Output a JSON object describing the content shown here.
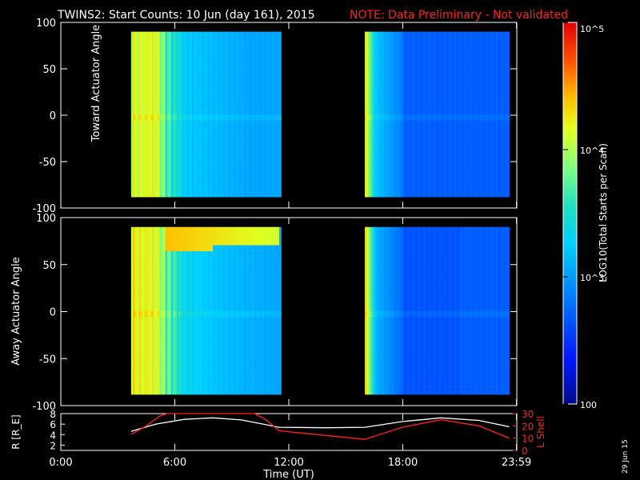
{
  "title": {
    "main": "TWINS2: Start Counts: 10 Jun (day 161), 2015",
    "note": "NOTE: Data Preliminary - Not validated"
  },
  "panels": {
    "toward": {
      "ylabel": "Toward Actuator Angle",
      "yticks": [
        "100",
        "50",
        "0",
        "-50",
        "-100"
      ]
    },
    "away": {
      "ylabel": "Away Actuator Angle",
      "yticks": [
        "100",
        "50",
        "0",
        "-50",
        "-100"
      ]
    }
  },
  "orbit": {
    "left_label": "R [R_E]",
    "left_ticks": [
      "8",
      "6",
      "4",
      "2"
    ],
    "right_label": "L Shell",
    "right_ticks": [
      "30",
      "20",
      "10",
      "0"
    ]
  },
  "xaxis": {
    "label": "Time (UT)",
    "ticks": [
      "0:00",
      "6:00",
      "12:00",
      "18:00",
      "23:59"
    ]
  },
  "colorbar": {
    "label": "LOG10(Total Starts per Scan)",
    "ticks": [
      "10^5",
      "10^4",
      "10^3",
      "100"
    ]
  },
  "stamp": "29 Jun 15",
  "colors": {
    "note": "#ff2020",
    "r_curve": "#ffffff",
    "l_curve": "#ff2020"
  },
  "chart_data": [
    {
      "type": "heatmap",
      "panel": "toward",
      "ylabel": "Toward Actuator Angle",
      "xlim_hours": [
        0,
        24
      ],
      "ylim": [
        -100,
        100
      ],
      "data_blocks_hours": [
        [
          3.7,
          11.6
        ],
        [
          16.0,
          23.6
        ]
      ],
      "angle_range": [
        -88,
        90
      ],
      "log10_counts_profile": [
        {
          "t": 3.8,
          "v": 4.2
        },
        {
          "t": 5.0,
          "v": 4.25
        },
        {
          "t": 5.5,
          "v": 3.8
        },
        {
          "t": 6.5,
          "v": 3.25
        },
        {
          "t": 8.0,
          "v": 3.15
        },
        {
          "t": 10.0,
          "v": 3.05
        },
        {
          "t": 11.5,
          "v": 3.05
        },
        {
          "t": 16.0,
          "v": 4.3
        },
        {
          "t": 16.6,
          "v": 3.2
        },
        {
          "t": 18.0,
          "v": 2.85
        },
        {
          "t": 21.0,
          "v": 2.7
        },
        {
          "t": 23.5,
          "v": 2.7
        }
      ]
    },
    {
      "type": "heatmap",
      "panel": "away",
      "ylabel": "Away Actuator Angle",
      "xlim_hours": [
        0,
        24
      ],
      "ylim": [
        -100,
        100
      ],
      "data_blocks_hours": [
        [
          3.7,
          11.6
        ],
        [
          16.0,
          23.6
        ]
      ],
      "angle_range": [
        -88,
        90
      ],
      "log10_counts_profile": [
        {
          "t": 3.8,
          "v": 4.3
        },
        {
          "t": 5.0,
          "v": 4.25
        },
        {
          "t": 5.5,
          "v": 3.9
        },
        {
          "t": 6.5,
          "v": 3.35
        },
        {
          "t": 8.0,
          "v": 3.2
        },
        {
          "t": 10.0,
          "v": 3.1
        },
        {
          "t": 11.5,
          "v": 3.05
        },
        {
          "t": 16.0,
          "v": 4.4
        },
        {
          "t": 16.6,
          "v": 3.1
        },
        {
          "t": 18.0,
          "v": 2.75
        },
        {
          "t": 21.0,
          "v": 2.65
        },
        {
          "t": 23.5,
          "v": 2.7
        }
      ],
      "high_angle_band": {
        "t_start": 5.5,
        "t_end": 11.4,
        "angle_min": 68,
        "angle_max": 90,
        "log10_counts": 4.4
      }
    },
    {
      "type": "line",
      "panel": "orbit",
      "x_units": "hours UT",
      "xlim": [
        0,
        24
      ],
      "ylim_left": [
        1,
        8
      ],
      "ylim_right": [
        0,
        30
      ],
      "series": [
        {
          "name": "R",
          "axis": "left",
          "x": [
            3.7,
            5.0,
            6.5,
            8.0,
            9.5,
            11.5,
            14.0,
            16.0,
            18.0,
            20.0,
            22.0,
            23.6
          ],
          "y": [
            4.6,
            6.0,
            6.9,
            7.2,
            6.8,
            5.4,
            5.3,
            5.4,
            6.5,
            7.2,
            6.7,
            5.5
          ]
        },
        {
          "name": "L Shell",
          "axis": "right",
          "x": [
            3.7,
            4.5,
            5.2,
            5.6,
            10.2,
            10.8,
            11.5,
            16.0,
            18.0,
            20.0,
            22.0,
            23.6
          ],
          "y": [
            13,
            20,
            28,
            31,
            31,
            25,
            16,
            9,
            19,
            25,
            20,
            10
          ]
        }
      ]
    }
  ]
}
